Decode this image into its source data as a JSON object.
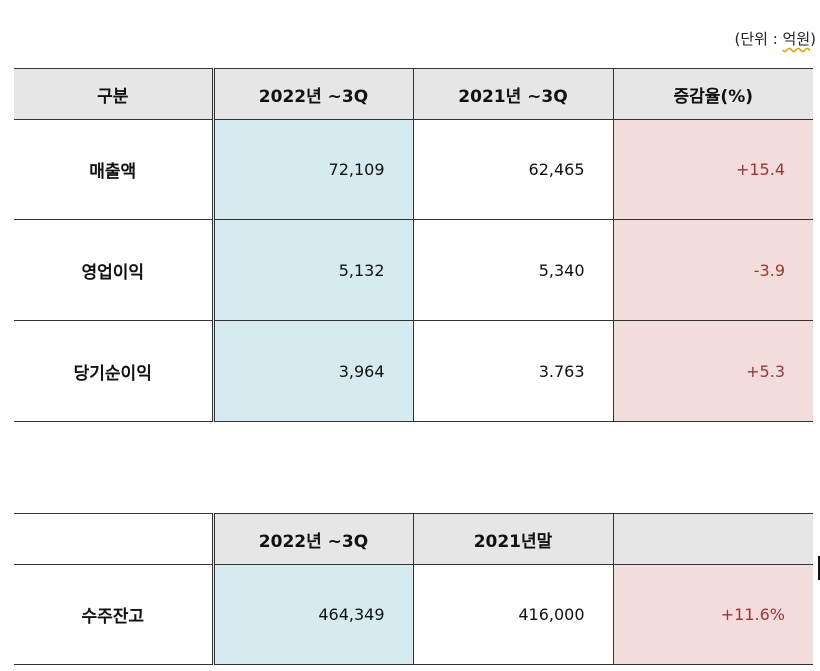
{
  "unit_note": {
    "prefix": "(단위 : ",
    "word": "억원",
    "suffix": ")"
  },
  "table1": {
    "headers": [
      "구분",
      "2022년 ~3Q",
      "2021년 ~3Q",
      "증감율(%)"
    ],
    "rows": [
      {
        "label": "매출액",
        "v2022": "72,109",
        "v2021": "62,465",
        "change": "+15.4"
      },
      {
        "label": "영업이익",
        "v2022": "5,132",
        "v2021": "5,340",
        "change": "-3.9"
      },
      {
        "label": "당기순이익",
        "v2022": "3,964",
        "v2021": "3.763",
        "change": "+5.3"
      }
    ]
  },
  "table2": {
    "headers": [
      "",
      "2022년 ~3Q",
      "2021년말",
      ""
    ],
    "rows": [
      {
        "label": "수주잔고",
        "v2022": "464,349",
        "v2021": "416,000",
        "change": "+11.6%"
      }
    ]
  },
  "colors": {
    "header_bg": "#e6e6e6",
    "blue_cell": "#d5ebef",
    "pink_cell": "#f2dcdc",
    "pink_text": "#9a3636"
  }
}
